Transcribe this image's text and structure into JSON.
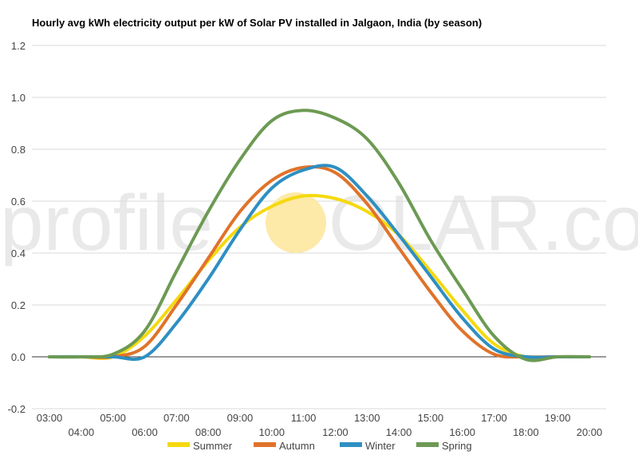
{
  "watermark": {
    "text_left": "profile",
    "text_right": "OLAR.com",
    "sun_color": "#fde9a8"
  },
  "chart_data": {
    "type": "line",
    "title": "Hourly avg kWh electricity output per kW of Solar PV installed in Jalgaon, India (by season)",
    "xlabel": "",
    "ylabel": "",
    "ylim": [
      -0.2,
      1.2
    ],
    "yticks": [
      "-0.2",
      "0.0",
      "0.2",
      "0.4",
      "0.6",
      "0.8",
      "1.0",
      "1.2"
    ],
    "grid": true,
    "legend": "bottom",
    "x": [
      "03:00",
      "04:00",
      "05:00",
      "06:00",
      "07:00",
      "08:00",
      "09:00",
      "10:00",
      "11:00",
      "12:00",
      "13:00",
      "14:00",
      "15:00",
      "16:00",
      "17:00",
      "18:00",
      "19:00",
      "20:00"
    ],
    "series": [
      {
        "name": "Summer",
        "color": "#f5d90f",
        "values": [
          0.0,
          0.0,
          0.0,
          0.08,
          0.22,
          0.37,
          0.5,
          0.58,
          0.62,
          0.61,
          0.56,
          0.47,
          0.33,
          0.18,
          0.05,
          0.0,
          0.0,
          0.0
        ]
      },
      {
        "name": "Autumn",
        "color": "#e0732a",
        "values": [
          0.0,
          0.0,
          0.0,
          0.04,
          0.2,
          0.38,
          0.56,
          0.68,
          0.73,
          0.71,
          0.59,
          0.42,
          0.25,
          0.1,
          0.01,
          0.0,
          0.0,
          0.0
        ]
      },
      {
        "name": "Winter",
        "color": "#2e8fc2",
        "values": [
          0.0,
          0.0,
          0.0,
          0.0,
          0.13,
          0.3,
          0.49,
          0.65,
          0.72,
          0.73,
          0.62,
          0.47,
          0.31,
          0.15,
          0.03,
          0.0,
          0.0,
          0.0
        ]
      },
      {
        "name": "Spring",
        "color": "#6c9a53",
        "values": [
          0.0,
          0.0,
          0.01,
          0.1,
          0.33,
          0.56,
          0.76,
          0.91,
          0.95,
          0.92,
          0.84,
          0.67,
          0.45,
          0.26,
          0.08,
          -0.01,
          0.0,
          0.0
        ]
      }
    ]
  }
}
